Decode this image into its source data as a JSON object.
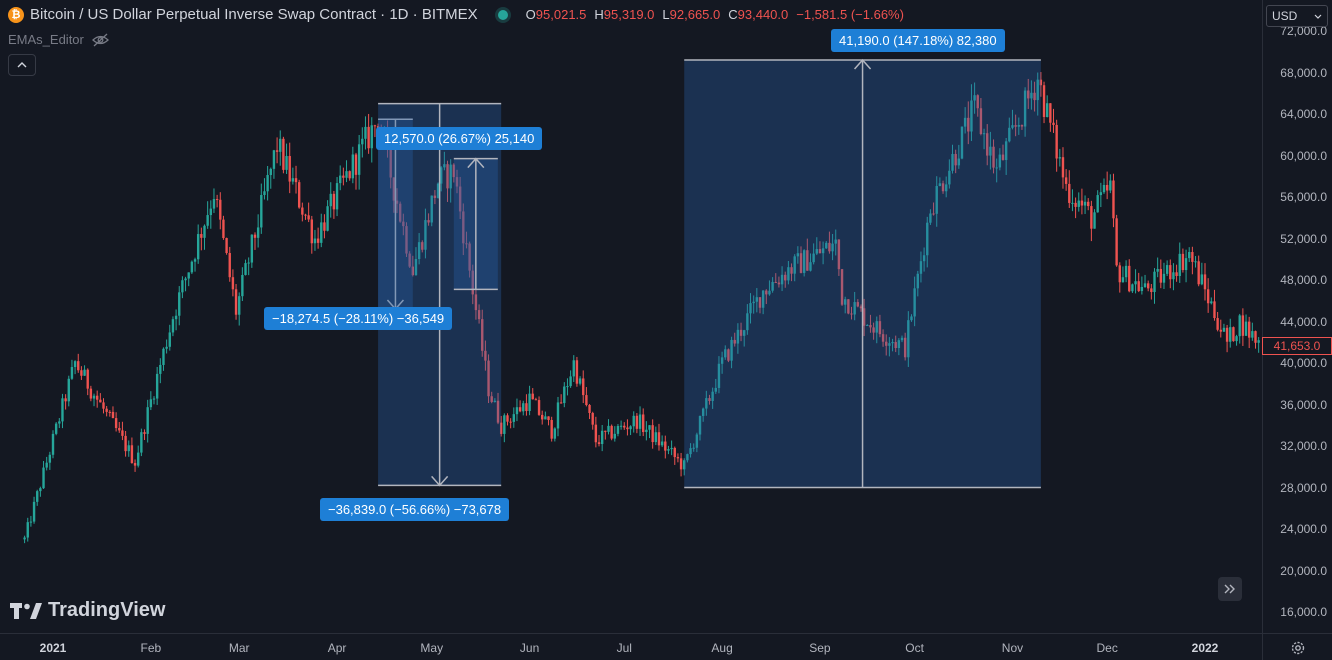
{
  "header": {
    "logo_glyph": "₿",
    "title": "Bitcoin / US Dollar Perpetual Inverse Swap Contract · 1D · BITMEX",
    "ohlc": {
      "o_label": "O",
      "o": "95,021.5",
      "h_label": "H",
      "h": "95,319.0",
      "l_label": "L",
      "l": "92,665.0",
      "c_label": "C",
      "c": "93,440.0",
      "change": "−1,581.5 (−1.66%)"
    }
  },
  "indicator": {
    "name": "EMAs_Editor",
    "icon": "eye-off-icon"
  },
  "collapse": {
    "icon": "chevron-up-icon"
  },
  "currency": {
    "value": "USD",
    "icon": "chevron-down-icon"
  },
  "current_price": "41,653.0",
  "brand": {
    "name": "TradingView",
    "icon": "tradingview-logo-icon"
  },
  "scroll": {
    "icon": "double-chevron-right-icon"
  },
  "settings": {
    "icon": "gear-icon"
  },
  "measures": {
    "m1": "12,570.0 (26.67%) 25,140",
    "m2": "−18,274.5 (−28.11%) −36,549",
    "m3": "−36,839.0 (−56.66%) −73,678",
    "m4": "41,190.0 (147.18%) 82,380"
  },
  "colors": {
    "background": "#141822",
    "up": "#26a69a",
    "down": "#ef5350",
    "measure_fill": "#1e3558",
    "label": "#1e7fd6"
  },
  "chart_data": {
    "type": "candlestick",
    "title": "Bitcoin / US Dollar Perpetual Inverse Swap Contract · 1D · BITMEX",
    "x_ticks": [
      "2021",
      "Feb",
      "Mar",
      "Apr",
      "May",
      "Jun",
      "Jul",
      "Aug",
      "Sep",
      "Oct",
      "Nov",
      "Dec",
      "2022"
    ],
    "y_ticks": [
      "16,000.0",
      "20,000.0",
      "24,000.0",
      "28,000.0",
      "32,000.0",
      "36,000.0",
      "40,000.0",
      "44,000.0",
      "48,000.0",
      "52,000.0",
      "56,000.0",
      "60,000.0",
      "64,000.0",
      "68,000.0",
      "72,000.0"
    ],
    "ylim": [
      14000,
      73000
    ],
    "close_series": [
      {
        "date": "2020-12-23",
        "close": 23000
      },
      {
        "date": "2021-01-08",
        "close": 40000
      },
      {
        "date": "2021-01-15",
        "close": 36500
      },
      {
        "date": "2021-01-27",
        "close": 30500
      },
      {
        "date": "2021-02-08",
        "close": 44500
      },
      {
        "date": "2021-02-21",
        "close": 56500
      },
      {
        "date": "2021-02-28",
        "close": 45000
      },
      {
        "date": "2021-03-13",
        "close": 61000
      },
      {
        "date": "2021-03-25",
        "close": 52000
      },
      {
        "date": "2021-04-05",
        "close": 58500
      },
      {
        "date": "2021-04-14",
        "close": 63500
      },
      {
        "date": "2021-04-25",
        "close": 49000
      },
      {
        "date": "2021-05-03",
        "close": 57500
      },
      {
        "date": "2021-05-08",
        "close": 58500
      },
      {
        "date": "2021-05-19",
        "close": 37500
      },
      {
        "date": "2021-05-23",
        "close": 34000
      },
      {
        "date": "2021-06-01",
        "close": 36500
      },
      {
        "date": "2021-06-08",
        "close": 33500
      },
      {
        "date": "2021-06-15",
        "close": 40000
      },
      {
        "date": "2021-06-22",
        "close": 32500
      },
      {
        "date": "2021-07-05",
        "close": 34500
      },
      {
        "date": "2021-07-20",
        "close": 30000
      },
      {
        "date": "2021-08-01",
        "close": 40000
      },
      {
        "date": "2021-08-14",
        "close": 47000
      },
      {
        "date": "2021-08-22",
        "close": 49000
      },
      {
        "date": "2021-09-06",
        "close": 51500
      },
      {
        "date": "2021-09-08",
        "close": 46500
      },
      {
        "date": "2021-09-20",
        "close": 43000
      },
      {
        "date": "2021-09-28",
        "close": 41500
      },
      {
        "date": "2021-10-06",
        "close": 55000
      },
      {
        "date": "2021-10-15",
        "close": 61000
      },
      {
        "date": "2021-10-20",
        "close": 64500
      },
      {
        "date": "2021-10-27",
        "close": 58500
      },
      {
        "date": "2021-11-09",
        "close": 67500
      },
      {
        "date": "2021-11-18",
        "close": 57000
      },
      {
        "date": "2021-11-26",
        "close": 54000
      },
      {
        "date": "2021-12-02",
        "close": 57000
      },
      {
        "date": "2021-12-04",
        "close": 49000
      },
      {
        "date": "2021-12-13",
        "close": 47000
      },
      {
        "date": "2021-12-27",
        "close": 50500
      },
      {
        "date": "2022-01-08",
        "close": 42000
      },
      {
        "date": "2022-01-12",
        "close": 44000
      },
      {
        "date": "2022-01-19",
        "close": 41653
      }
    ],
    "measurements": [
      {
        "from": {
          "date": "2021-04-14",
          "price": 63500
        },
        "to": {
          "date": "2021-04-25",
          "price": 45200
        },
        "label": "−18,274.5 (−28.11%) −36,549"
      },
      {
        "from": {
          "date": "2021-04-14",
          "price": 65000
        },
        "to": {
          "date": "2021-05-23",
          "price": 28200
        },
        "label": "−36,839.0 (−56.66%) −73,678"
      },
      {
        "from": {
          "date": "2021-05-19",
          "price": 47100
        },
        "to": {
          "date": "2021-05-08",
          "price": 59700
        },
        "label": "12,570.0 (26.67%) 25,140"
      },
      {
        "from": {
          "date": "2021-07-20",
          "price": 28000
        },
        "to": {
          "date": "2021-11-10",
          "price": 69200
        },
        "label": "41,190.0 (147.18%) 82,380"
      }
    ]
  }
}
